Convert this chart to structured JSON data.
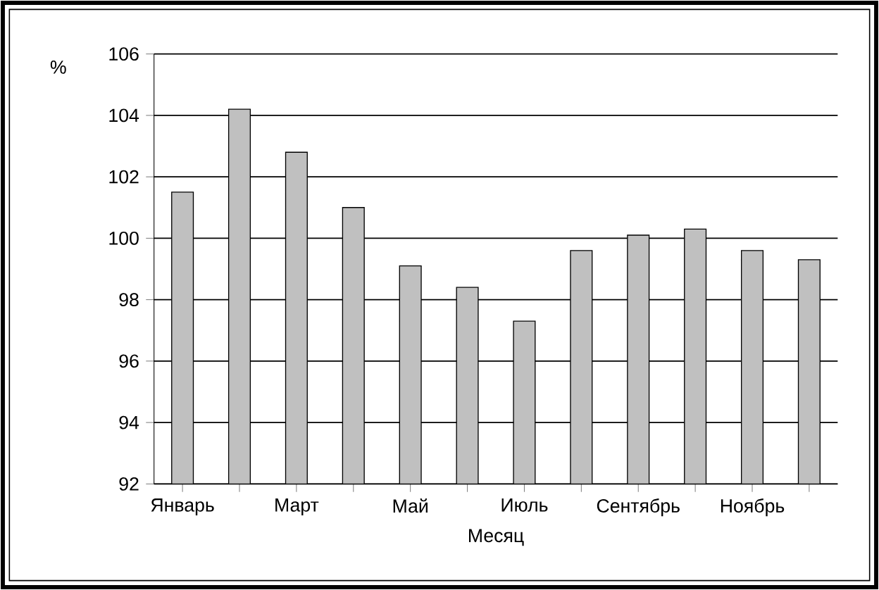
{
  "chart_data": {
    "type": "bar",
    "xlabel": "Месяц",
    "ylabel": "%",
    "categories": [
      "Январь",
      null,
      "Март",
      null,
      "Май",
      null,
      "Июль",
      null,
      "Сентябрь",
      null,
      "Ноябрь",
      null
    ],
    "values": [
      101.5,
      104.2,
      102.8,
      101.0,
      99.1,
      98.4,
      97.3,
      99.6,
      100.1,
      100.3,
      99.6,
      99.3
    ],
    "color": "#c0c0c0",
    "ylim": [
      92,
      106
    ],
    "yticks": [
      92,
      94,
      96,
      98,
      100,
      102,
      104,
      106
    ],
    "grid": "y"
  }
}
